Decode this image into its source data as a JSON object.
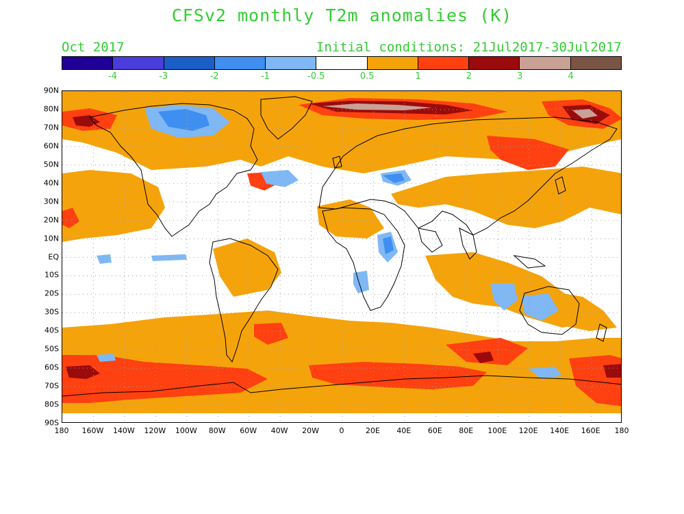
{
  "title": "CFSv2 monthly T2m anomalies (K)",
  "valid_month": "Oct 2017",
  "initial_conditions": "Initial conditions: 21Jul2017-30Jul2017",
  "colorbar": {
    "colors": [
      "#1e0096",
      "#4a3ddb",
      "#1b5ec8",
      "#3e8ff0",
      "#7fb8f5",
      "#ffffff",
      "#f5a30a",
      "#ff4010",
      "#9b0b0b",
      "#c9a195",
      "#7a5545"
    ],
    "labels": [
      "-4",
      "-3",
      "-2",
      "-1",
      "-0.5",
      "0.5",
      "1",
      "2",
      "3",
      "4"
    ]
  },
  "axes": {
    "lat_labels": [
      "90N",
      "80N",
      "70N",
      "60N",
      "50N",
      "40N",
      "30N",
      "20N",
      "10N",
      "EQ",
      "10S",
      "20S",
      "30S",
      "40S",
      "50S",
      "60S",
      "70S",
      "80S",
      "90S"
    ],
    "lon_labels": [
      "180",
      "160W",
      "140W",
      "120W",
      "100W",
      "80W",
      "60W",
      "40W",
      "20W",
      "0",
      "20E",
      "40E",
      "60E",
      "80E",
      "100E",
      "120E",
      "140E",
      "160E",
      "180"
    ]
  },
  "colors": {
    "text": "#33cc33",
    "warm_1": "#f5a30a",
    "warm_2": "#ff4010",
    "warm_3": "#9b0b0b",
    "warm_4": "#c9a195",
    "cool_05": "#7fb8f5",
    "cool_1": "#3e8ff0",
    "coast": "#000000",
    "grid": "#a0a0a0"
  }
}
